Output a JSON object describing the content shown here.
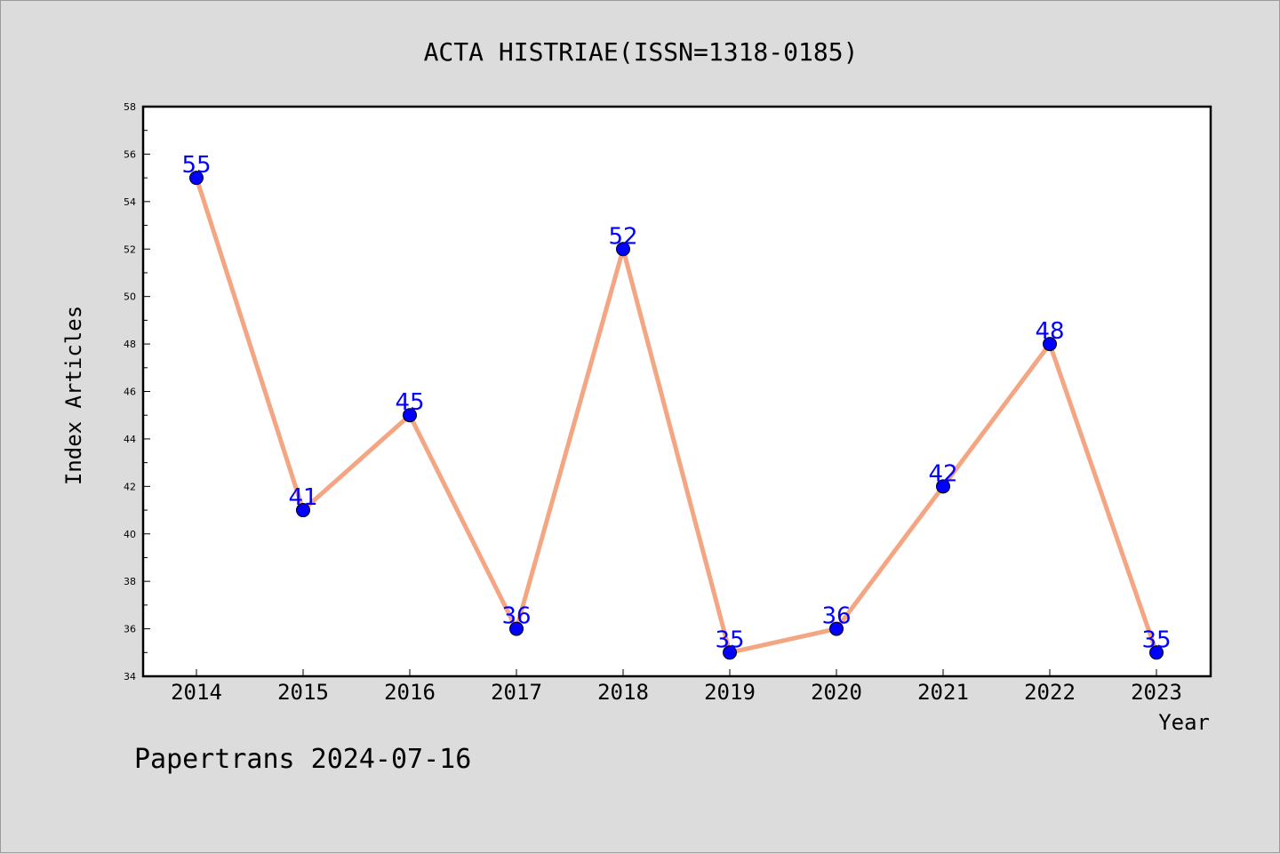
{
  "chart_data": {
    "type": "line",
    "title": "ACTA HISTRIAE(ISSN=1318-0185)",
    "xlabel": "Year",
    "ylabel": "Index Articles",
    "x": [
      "2014",
      "2015",
      "2016",
      "2017",
      "2018",
      "2019",
      "2020",
      "2021",
      "2022",
      "2023"
    ],
    "series": [
      {
        "values": [
          55,
          41,
          45,
          36,
          52,
          35,
          36,
          42,
          48,
          35
        ]
      }
    ],
    "ylim": [
      34,
      58
    ],
    "yticks": [
      34,
      36,
      38,
      40,
      42,
      44,
      46,
      48,
      50,
      52,
      54,
      56,
      58
    ],
    "grid": false,
    "legend": "none",
    "line_color": "#f4a582",
    "marker_color": "#0000ff",
    "label_color": "#0000ff"
  },
  "footer": "Papertrans 2024-07-16"
}
